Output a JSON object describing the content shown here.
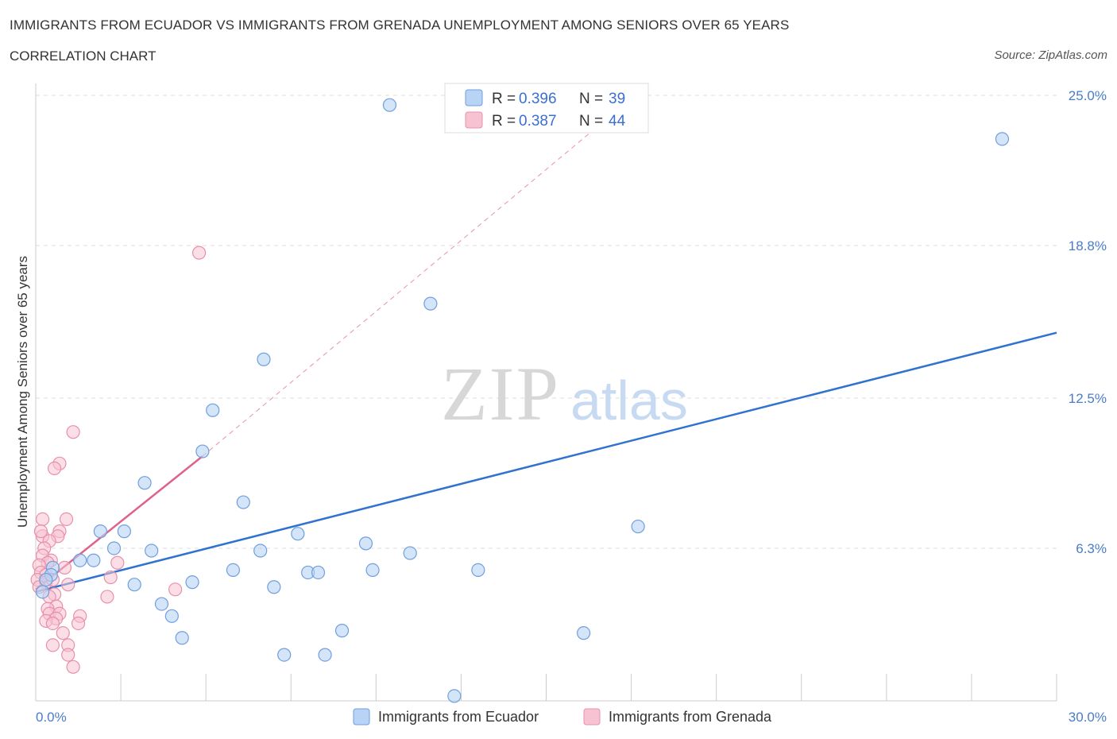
{
  "header": {
    "title": "IMMIGRANTS FROM ECUADOR VS IMMIGRANTS FROM GRENADA UNEMPLOYMENT AMONG SENIORS OVER 65 YEARS",
    "subtitle": "CORRELATION CHART",
    "source": "Source: ZipAtlas.com"
  },
  "watermark": {
    "zip": "ZIP",
    "atlas": "atlas"
  },
  "colors": {
    "ecuador_fill": "#b8d3f5",
    "ecuador_stroke": "#6f9fdc",
    "ecuador_line": "#2f72cf",
    "grenada_fill": "#f7c3d2",
    "grenada_stroke": "#e890aa",
    "grenada_line": "#e0628a",
    "tick_text": "#4a7cc9",
    "grid": "#dddddd"
  },
  "chart_data": {
    "type": "scatter",
    "title": "IMMIGRANTS FROM ECUADOR VS IMMIGRANTS FROM GRENADA UNEMPLOYMENT AMONG SENIORS OVER 65 YEARS",
    "xlabel": "",
    "ylabel": "Unemployment Among Seniors over 65 years",
    "xlim": [
      0,
      30
    ],
    "ylim": [
      0,
      25
    ],
    "x_tick_labels": [
      "0.0%",
      "30.0%"
    ],
    "y_ticks": [
      {
        "value": 6.3,
        "label": "6.3%"
      },
      {
        "value": 12.5,
        "label": "12.5%"
      },
      {
        "value": 18.8,
        "label": "18.8%"
      },
      {
        "value": 25.0,
        "label": "25.0%"
      }
    ],
    "legend": [
      {
        "series": "Immigrants from Ecuador",
        "r_label": "R = ",
        "r": "0.396",
        "n_label": "N = ",
        "n": "39"
      },
      {
        "series": "Immigrants from Grenada",
        "r_label": "R = ",
        "r": "0.387",
        "n_label": "N = ",
        "n": "44"
      }
    ],
    "series": [
      {
        "name": "Immigrants from Ecuador",
        "points": [
          [
            10.4,
            24.6
          ],
          [
            28.4,
            23.2
          ],
          [
            11.6,
            16.4
          ],
          [
            6.7,
            14.1
          ],
          [
            5.2,
            12.0
          ],
          [
            4.9,
            10.3
          ],
          [
            3.2,
            9.0
          ],
          [
            6.1,
            8.2
          ],
          [
            17.7,
            7.2
          ],
          [
            1.9,
            7.0
          ],
          [
            2.6,
            7.0
          ],
          [
            7.7,
            6.9
          ],
          [
            9.7,
            6.5
          ],
          [
            2.3,
            6.3
          ],
          [
            3.4,
            6.2
          ],
          [
            6.6,
            6.2
          ],
          [
            11.0,
            6.1
          ],
          [
            1.3,
            5.8
          ],
          [
            1.7,
            5.8
          ],
          [
            5.8,
            5.4
          ],
          [
            9.9,
            5.4
          ],
          [
            13.0,
            5.4
          ],
          [
            8.0,
            5.3
          ],
          [
            8.3,
            5.3
          ],
          [
            0.5,
            5.5
          ],
          [
            0.45,
            5.2
          ],
          [
            0.3,
            5.0
          ],
          [
            2.9,
            4.8
          ],
          [
            4.6,
            4.9
          ],
          [
            7.0,
            4.7
          ],
          [
            0.2,
            4.5
          ],
          [
            3.7,
            4.0
          ],
          [
            4.0,
            3.5
          ],
          [
            9.0,
            2.9
          ],
          [
            16.1,
            2.8
          ],
          [
            4.3,
            2.6
          ],
          [
            7.3,
            1.9
          ],
          [
            8.5,
            1.9
          ],
          [
            12.3,
            0.2
          ]
        ],
        "trend": {
          "x": [
            0,
            30
          ],
          "y": [
            4.5,
            15.2
          ]
        }
      },
      {
        "name": "Immigrants from Grenada",
        "points": [
          [
            4.8,
            18.5
          ],
          [
            1.1,
            11.1
          ],
          [
            0.7,
            9.8
          ],
          [
            0.55,
            9.6
          ],
          [
            0.2,
            7.5
          ],
          [
            0.9,
            7.5
          ],
          [
            0.7,
            7.0
          ],
          [
            0.2,
            6.8
          ],
          [
            0.65,
            6.8
          ],
          [
            0.4,
            6.6
          ],
          [
            0.25,
            6.3
          ],
          [
            0.2,
            6.0
          ],
          [
            0.45,
            5.8
          ],
          [
            0.35,
            5.7
          ],
          [
            2.4,
            5.7
          ],
          [
            0.1,
            5.6
          ],
          [
            0.85,
            5.5
          ],
          [
            0.15,
            5.3
          ],
          [
            0.3,
            5.2
          ],
          [
            2.2,
            5.1
          ],
          [
            0.05,
            5.0
          ],
          [
            0.3,
            4.9
          ],
          [
            0.95,
            4.8
          ],
          [
            4.1,
            4.6
          ],
          [
            0.55,
            4.4
          ],
          [
            0.4,
            4.3
          ],
          [
            2.1,
            4.3
          ],
          [
            0.6,
            3.9
          ],
          [
            0.35,
            3.8
          ],
          [
            0.4,
            3.6
          ],
          [
            0.7,
            3.6
          ],
          [
            1.3,
            3.5
          ],
          [
            0.6,
            3.4
          ],
          [
            0.3,
            3.3
          ],
          [
            0.5,
            3.2
          ],
          [
            1.25,
            3.2
          ],
          [
            0.8,
            2.8
          ],
          [
            0.5,
            2.3
          ],
          [
            0.95,
            2.3
          ],
          [
            0.95,
            1.9
          ],
          [
            1.1,
            1.4
          ],
          [
            0.1,
            4.7
          ],
          [
            0.15,
            7.0
          ],
          [
            0.5,
            5.0
          ]
        ],
        "trend": {
          "x": [
            0,
            4.9
          ],
          "y": [
            4.6,
            10.1
          ]
        },
        "trend_extended": {
          "x": [
            4.9,
            16.5
          ],
          "y": [
            10.1,
            23.7
          ]
        }
      }
    ]
  }
}
